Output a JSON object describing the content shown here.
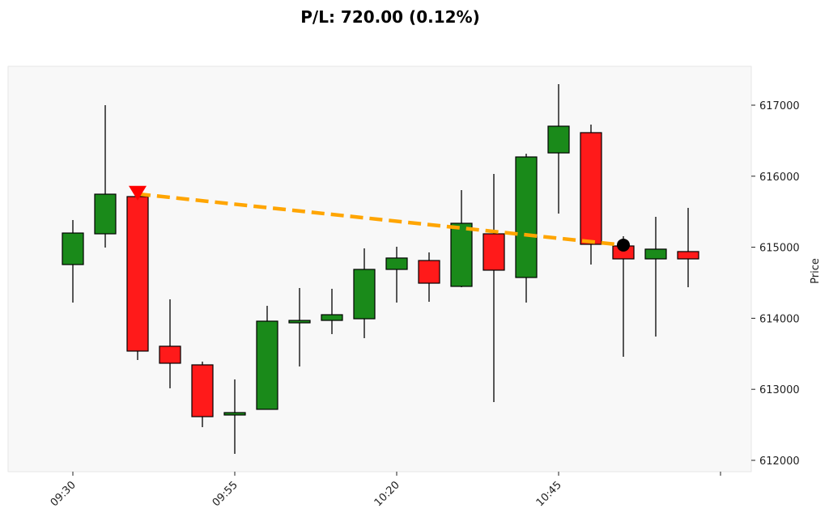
{
  "chart_data": {
    "type": "candlestick",
    "title": "P/L: 720.00 (0.12%)",
    "xlabel": "",
    "ylabel": "Price",
    "ylim": [
      611850,
      617600
    ],
    "yticks": [
      612000,
      613000,
      614000,
      615000,
      616000,
      617000
    ],
    "xtick_labels": [
      "09:30",
      "09:55",
      "10:20",
      "10:45",
      ""
    ],
    "xtick_index": [
      0,
      5,
      10,
      15,
      20
    ],
    "grid": false,
    "colors": {
      "up": "#1a8a1a",
      "down": "#ff1a1a",
      "trade_line": "#ffa500",
      "entry": "#ff0000",
      "exit": "#000000",
      "plot_bg": "#f8f8f8"
    },
    "candles": [
      {
        "t": "09:30",
        "o": 614756,
        "h": 615383,
        "l": 614221,
        "c": 615200
      },
      {
        "t": "09:35",
        "o": 615189,
        "h": 617000,
        "l": 614996,
        "c": 615747
      },
      {
        "t": "09:40",
        "o": 615713,
        "h": 615713,
        "l": 613412,
        "c": 613538
      },
      {
        "t": "09:45",
        "o": 613606,
        "h": 614267,
        "l": 613014,
        "c": 613367
      },
      {
        "t": "09:50",
        "o": 613344,
        "h": 613390,
        "l": 612467,
        "c": 612615
      },
      {
        "t": "09:55",
        "o": 612638,
        "h": 613139,
        "l": 612091,
        "c": 612672
      },
      {
        "t": "10:00",
        "o": 612718,
        "h": 614175,
        "l": 612718,
        "c": 613959
      },
      {
        "t": "10:05",
        "o": 613936,
        "h": 614426,
        "l": 613321,
        "c": 613970
      },
      {
        "t": "10:10",
        "o": 613970,
        "h": 614415,
        "l": 613777,
        "c": 614050
      },
      {
        "t": "10:15",
        "o": 613993,
        "h": 614984,
        "l": 613720,
        "c": 614688
      },
      {
        "t": "10:20",
        "o": 614688,
        "h": 615007,
        "l": 614221,
        "c": 614848
      },
      {
        "t": "10:25",
        "o": 614813,
        "h": 614927,
        "l": 614232,
        "c": 614494
      },
      {
        "t": "10:30",
        "o": 614449,
        "h": 615804,
        "l": 614437,
        "c": 615337
      },
      {
        "t": "10:35",
        "o": 615189,
        "h": 616032,
        "l": 612820,
        "c": 614677
      },
      {
        "t": "10:40",
        "o": 614574,
        "h": 616317,
        "l": 614221,
        "c": 616271
      },
      {
        "t": "10:45",
        "o": 616328,
        "h": 617296,
        "l": 615474,
        "c": 616704
      },
      {
        "t": "10:50",
        "o": 616613,
        "h": 616727,
        "l": 614756,
        "c": 615041
      },
      {
        "t": "10:55",
        "o": 615018,
        "h": 615155,
        "l": 613458,
        "c": 614836
      },
      {
        "t": "11:00",
        "o": 614836,
        "h": 615428,
        "l": 613743,
        "c": 614973
      },
      {
        "t": "11:05",
        "o": 614939,
        "h": 615554,
        "l": 614437,
        "c": 614836
      }
    ],
    "trade": {
      "side": "short",
      "entry_index": 2,
      "entry_price": 615750,
      "exit_index": 17,
      "exit_price": 615030,
      "pnl": 720.0,
      "pnl_pct": 0.12
    }
  }
}
